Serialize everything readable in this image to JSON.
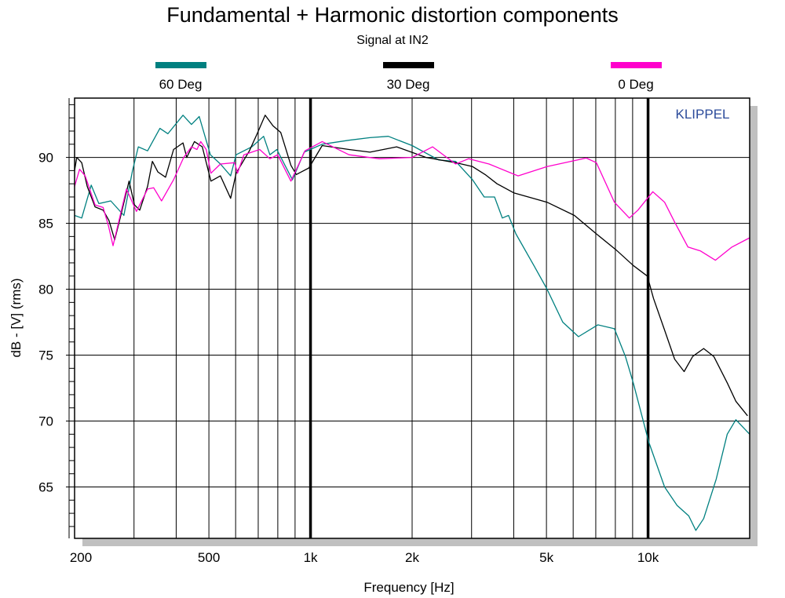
{
  "chart_data": {
    "type": "line",
    "title": "Fundamental + Harmonic distortion components",
    "subtitle": "Signal at IN2",
    "xlabel": "Frequency [Hz]",
    "ylabel": "dB - [V]  (rms)",
    "x_scale": "log",
    "xlim": [
      200,
      20000
    ],
    "ylim": [
      61.1,
      94.5
    ],
    "grid": true,
    "legend_placement": "top",
    "watermark": "KLIPPEL",
    "x_ticks": [
      {
        "value": 200,
        "label": "200"
      },
      {
        "value": 500,
        "label": "500"
      },
      {
        "value": 1000,
        "label": "1k"
      },
      {
        "value": 2000,
        "label": "2k"
      },
      {
        "value": 5000,
        "label": "5k"
      },
      {
        "value": 10000,
        "label": "10k"
      }
    ],
    "y_ticks": [
      {
        "value": 65,
        "label": "65"
      },
      {
        "value": 70,
        "label": "70"
      },
      {
        "value": 75,
        "label": "75"
      },
      {
        "value": 80,
        "label": "80"
      },
      {
        "value": 85,
        "label": "85"
      },
      {
        "value": 90,
        "label": "90"
      }
    ],
    "series": [
      {
        "name": "60 Deg",
        "color": "#008080",
        "points": [
          [
            200,
            85.6
          ],
          [
            210,
            85.4
          ],
          [
            224,
            87.9
          ],
          [
            236,
            86.5
          ],
          [
            256,
            86.7
          ],
          [
            280,
            85.6
          ],
          [
            297,
            89
          ],
          [
            309,
            90.8
          ],
          [
            329,
            90.5
          ],
          [
            358,
            92.2
          ],
          [
            378,
            91.8
          ],
          [
            419,
            93.2
          ],
          [
            444,
            92.5
          ],
          [
            468,
            93.1
          ],
          [
            505,
            90.2
          ],
          [
            541,
            89.5
          ],
          [
            580,
            88.6
          ],
          [
            602,
            90.2
          ],
          [
            670,
            90.8
          ],
          [
            726,
            91.6
          ],
          [
            758,
            90.2
          ],
          [
            795,
            90.6
          ],
          [
            884,
            88.3
          ],
          [
            958,
            90.4
          ],
          [
            1083,
            91
          ],
          [
            1300,
            91.3
          ],
          [
            1500,
            91.5
          ],
          [
            1700,
            91.6
          ],
          [
            2000,
            90.9
          ],
          [
            2400,
            89.8
          ],
          [
            2690,
            89.7
          ],
          [
            3020,
            88.3
          ],
          [
            3270,
            87
          ],
          [
            3510,
            87
          ],
          [
            3700,
            85.4
          ],
          [
            3860,
            85.6
          ],
          [
            4060,
            84.2
          ],
          [
            4590,
            81.8
          ],
          [
            5020,
            80
          ],
          [
            5590,
            77.5
          ],
          [
            6220,
            76.4
          ],
          [
            7100,
            77.3
          ],
          [
            7950,
            77
          ],
          [
            8570,
            74.9
          ],
          [
            9040,
            72.9
          ],
          [
            10050,
            68.4
          ],
          [
            11190,
            65
          ],
          [
            12190,
            63.6
          ],
          [
            13200,
            62.8
          ],
          [
            13850,
            61.7
          ],
          [
            14610,
            62.6
          ],
          [
            15920,
            65.6
          ],
          [
            17160,
            69
          ],
          [
            18200,
            70.1
          ],
          [
            20000,
            69
          ]
        ]
      },
      {
        "name": "30 Deg",
        "color": "#000000",
        "points": [
          [
            200,
            89
          ],
          [
            203,
            90
          ],
          [
            210,
            89.6
          ],
          [
            218,
            87.8
          ],
          [
            230,
            86.25
          ],
          [
            243,
            86
          ],
          [
            253,
            85.2
          ],
          [
            263,
            83.75
          ],
          [
            273,
            85.4
          ],
          [
            290,
            88.2
          ],
          [
            301,
            86.4
          ],
          [
            312,
            86
          ],
          [
            329,
            87.8
          ],
          [
            340,
            89.7
          ],
          [
            353,
            88.9
          ],
          [
            372,
            88.5
          ],
          [
            393,
            90.6
          ],
          [
            419,
            91.1
          ],
          [
            430,
            90
          ],
          [
            453,
            91.2
          ],
          [
            478,
            90.8
          ],
          [
            507,
            88.2
          ],
          [
            541,
            88.6
          ],
          [
            580,
            86.9
          ],
          [
            602,
            88.8
          ],
          [
            659,
            90.5
          ],
          [
            695,
            91.8
          ],
          [
            734,
            93.2
          ],
          [
            774,
            92.4
          ],
          [
            816,
            91.9
          ],
          [
            875,
            89.4
          ],
          [
            908,
            88.7
          ],
          [
            989,
            89.2
          ],
          [
            1083,
            90.9
          ],
          [
            1300,
            90.6
          ],
          [
            1500,
            90.4
          ],
          [
            1800,
            90.8
          ],
          [
            2200,
            90
          ],
          [
            2690,
            89.6
          ],
          [
            3020,
            89.3
          ],
          [
            3290,
            88.7
          ],
          [
            3570,
            88
          ],
          [
            4010,
            87.3
          ],
          [
            5020,
            86.6
          ],
          [
            6050,
            85.6
          ],
          [
            7030,
            84.2
          ],
          [
            8030,
            83
          ],
          [
            9040,
            81.8
          ],
          [
            9950,
            81
          ],
          [
            10380,
            79.3
          ],
          [
            11190,
            76.9
          ],
          [
            11990,
            74.7
          ],
          [
            12790,
            73.75
          ],
          [
            13560,
            74.9
          ],
          [
            14610,
            75.5
          ],
          [
            15660,
            74.9
          ],
          [
            17160,
            72.9
          ],
          [
            18200,
            71.5
          ],
          [
            19710,
            70.4
          ]
        ]
      },
      {
        "name": "0 Deg",
        "color": "#ff00cc",
        "points": [
          [
            200,
            87.8
          ],
          [
            207,
            89.1
          ],
          [
            215,
            88.6
          ],
          [
            230,
            86.4
          ],
          [
            243,
            86.2
          ],
          [
            252,
            84.8
          ],
          [
            260,
            83.3
          ],
          [
            273,
            85.6
          ],
          [
            285,
            87.6
          ],
          [
            305,
            85.9
          ],
          [
            329,
            87.6
          ],
          [
            343,
            87.7
          ],
          [
            362,
            86.7
          ],
          [
            393,
            88.3
          ],
          [
            421,
            90
          ],
          [
            444,
            90.8
          ],
          [
            461,
            90.6
          ],
          [
            473,
            91.2
          ],
          [
            491,
            90.6
          ],
          [
            507,
            88.8
          ],
          [
            541,
            89.5
          ],
          [
            596,
            89.6
          ],
          [
            608,
            88.8
          ],
          [
            635,
            90.2
          ],
          [
            707,
            90.6
          ],
          [
            758,
            89.9
          ],
          [
            799,
            90.2
          ],
          [
            875,
            88.2
          ],
          [
            963,
            90.5
          ],
          [
            1083,
            91.2
          ],
          [
            1300,
            90.2
          ],
          [
            1600,
            89.9
          ],
          [
            2000,
            90
          ],
          [
            2300,
            90.8
          ],
          [
            2690,
            89.5
          ],
          [
            2940,
            89.9
          ],
          [
            3380,
            89.5
          ],
          [
            4120,
            88.6
          ],
          [
            5020,
            89.3
          ],
          [
            6560,
            89.95
          ],
          [
            7030,
            89.6
          ],
          [
            7950,
            86.6
          ],
          [
            8800,
            85.4
          ],
          [
            9330,
            86
          ],
          [
            10330,
            87.4
          ],
          [
            11190,
            86.6
          ],
          [
            11990,
            85.1
          ],
          [
            13130,
            83.2
          ],
          [
            14300,
            82.9
          ],
          [
            15830,
            82.2
          ],
          [
            17720,
            83.2
          ],
          [
            20000,
            83.9
          ]
        ]
      }
    ]
  }
}
